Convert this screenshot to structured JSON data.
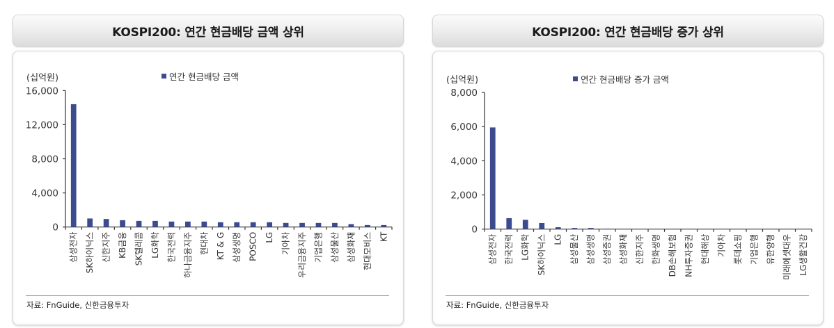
{
  "colors": {
    "bar": "#3c4a8e",
    "axis": "#333333",
    "source_line": "#4fb6d9"
  },
  "left_panel": {
    "title": "KOSPI200: 연간 현금배당 금액 상위",
    "unit": "(십억원)",
    "legend": "연간 현금배당 금액",
    "source": "자료: FnGuide, 신한금융투자"
  },
  "right_panel": {
    "title": "KOSPI200: 연간 현금배당 증가 상위",
    "unit": "(십억원)",
    "legend": "연간 현금배당 증가 금액",
    "source": "자료: FnGuide, 신한금융투자"
  },
  "chart_data": [
    {
      "type": "bar",
      "title": "KOSPI200: 연간 현금배당 금액 상위",
      "ylabel": "(십억원)",
      "xlabel": "",
      "legend": [
        "연간 현금배당 금액"
      ],
      "legend_position": "top",
      "grid": false,
      "ylim": [
        0,
        16000
      ],
      "yticks": [
        0,
        4000,
        8000,
        12000,
        16000
      ],
      "ytick_labels": [
        "0",
        "4,000",
        "8,000",
        "12,000",
        "16,000"
      ],
      "categories": [
        "삼성전자",
        "SK하이닉스",
        "신한지주",
        "KB금융",
        "SK텔레콤",
        "LG화학",
        "한국전력",
        "하나금융지주",
        "현대차",
        "KT & G",
        "삼성생명",
        "POSCO",
        "LG",
        "기아차",
        "우리금융지주",
        "기업은행",
        "삼성물산",
        "삼성화재",
        "현대모비스",
        "KT"
      ],
      "values": [
        14400,
        1000,
        940,
        800,
        720,
        720,
        640,
        640,
        640,
        560,
        560,
        560,
        560,
        480,
        480,
        480,
        480,
        340,
        230,
        230
      ]
    },
    {
      "type": "bar",
      "title": "KOSPI200: 연간 현금배당 증가 상위",
      "ylabel": "(십억원)",
      "xlabel": "",
      "legend": [
        "연간 현금배당 증가 금액"
      ],
      "legend_position": "top",
      "grid": false,
      "ylim": [
        0,
        8000
      ],
      "yticks": [
        0,
        2000,
        4000,
        6000,
        8000
      ],
      "ytick_labels": [
        "0",
        "2,000",
        "4,000",
        "6,000",
        "8,000"
      ],
      "categories": [
        "삼성전자",
        "한국전력",
        "LG화학",
        "SK하이닉스",
        "LG",
        "삼성물산",
        "삼성생명",
        "삼성증권",
        "삼성화재",
        "신한지주",
        "한화생명",
        "DB손해보험",
        "NH투자증권",
        "현대해상",
        "기아차",
        "롯데쇼핑",
        "기업은행",
        "유한양행",
        "미래에셋대우",
        "LG생활건강"
      ],
      "values": [
        5950,
        640,
        545,
        355,
        110,
        65,
        65,
        30,
        25,
        20,
        20,
        15,
        15,
        15,
        10,
        10,
        10,
        10,
        10,
        10
      ]
    }
  ]
}
